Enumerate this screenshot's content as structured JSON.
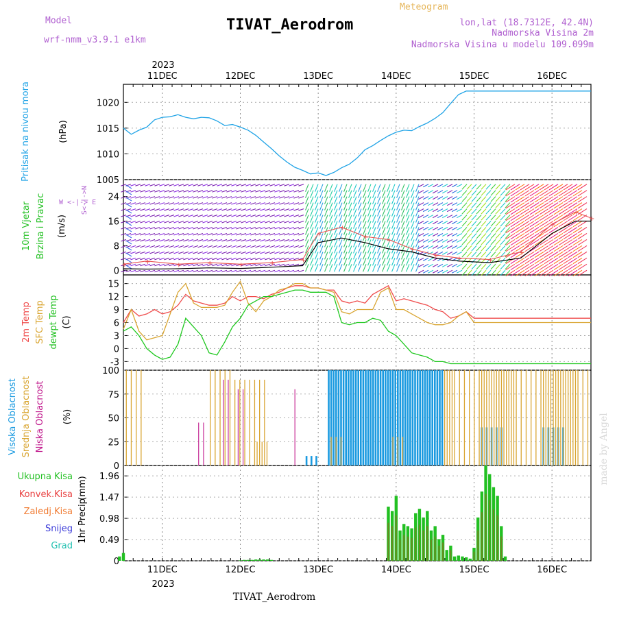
{
  "header": {
    "meteogram": "Meteogram",
    "model_label": "Model",
    "model_name": "wrf-nmm_v3.9.1 e1km",
    "title": "TIVAT_Aerodrom",
    "lonlat": "lon,lat (18.7312E, 42.4N)",
    "elev": "Nadmorska Visina 2m",
    "model_elev": "Nadmorska Visina u modelu 109.099m",
    "year_top": "2023",
    "year_bottom": "2023",
    "footer": "TIVAT_Aerodrom",
    "credit": "made by Angel"
  },
  "colors": {
    "pressure": "#1fa3e6",
    "temp2m": "#ef4a4a",
    "sfc": "#d9a531",
    "dew": "#1ec81e",
    "high_cloud": "#1a9ae0",
    "mid_cloud": "#d9a531",
    "low_cloud": "#c0188c",
    "precip_total": "#22c022",
    "precip_conv": "#e84040",
    "wind_speed": "#000000",
    "wind_gust": "#e85050"
  },
  "x_axis": {
    "days": [
      "11DEC",
      "12DEC",
      "13DEC",
      "14DEC",
      "15DEC",
      "16DEC"
    ],
    "range_days": [
      -0.5,
      5.5
    ]
  },
  "chart_data": [
    {
      "type": "line",
      "panel": "pressure",
      "ylabel_main": "Pritisak na nivou mora",
      "ylabel_unit": "(hPa)",
      "yticks": [
        "1005",
        "1010",
        "1015",
        "1020"
      ],
      "ylim": [
        1005,
        1023.5
      ],
      "x": [
        -0.5,
        -0.4,
        -0.3,
        -0.2,
        -0.1,
        0,
        0.1,
        0.2,
        0.3,
        0.4,
        0.5,
        0.6,
        0.7,
        0.8,
        0.9,
        1,
        1.1,
        1.2,
        1.3,
        1.4,
        1.5,
        1.6,
        1.7,
        1.8,
        1.9,
        2,
        2.1,
        2.2,
        2.3,
        2.4,
        2.5,
        2.6,
        2.7,
        2.8,
        2.9,
        3,
        3.1,
        3.2,
        3.3,
        3.4,
        3.5,
        3.6,
        3.7,
        3.8,
        3.9,
        4,
        4.1,
        4.2,
        4.3,
        4.4,
        4.5,
        4.6,
        4.7,
        4.8,
        4.9,
        5,
        5.1,
        5.2,
        5.3,
        5.4,
        5.5
      ],
      "values": [
        1015,
        1013.8,
        1014.6,
        1015.2,
        1016.6,
        1017.1,
        1017.2,
        1017.6,
        1017.1,
        1016.8,
        1017.1,
        1017.0,
        1016.4,
        1015.5,
        1015.7,
        1015.2,
        1014.6,
        1013.6,
        1012.3,
        1011.0,
        1009.6,
        1008.4,
        1007.4,
        1006.8,
        1006.1,
        1006.3,
        1005.8,
        1006.4,
        1007.3,
        1008.0,
        1009.2,
        1010.8,
        1011.6,
        1012.6,
        1013.5,
        1014.2,
        1014.6,
        1014.5,
        1015.3,
        1016.0,
        1016.9,
        1018.0,
        1019.8,
        1021.5,
        1022.2,
        1022.2,
        1022.2,
        1022.2,
        1022.2,
        1022.2,
        1022.2,
        1022.2,
        1022.2,
        1022.2,
        1022.2,
        1022.2,
        1022.2,
        1022.2,
        1022.2,
        1022.2,
        1022.2
      ]
    },
    {
      "type": "line",
      "panel": "wind",
      "ylabel_main": "10m Vjetar",
      "ylabel_sub": "Brzina i Pravac",
      "ylabel_unit": "(m/s)",
      "compass": "W <-|-> E",
      "compass_ns": "S<-|->N",
      "yticks": [
        "0",
        "8",
        "16",
        "24"
      ],
      "ylim": [
        -1.5,
        29.5
      ],
      "series": [
        {
          "values_x": [
            -0.5,
            -0.2,
            0.2,
            0.6,
            1.0,
            1.4,
            1.8,
            2.0,
            2.3,
            2.6,
            2.9,
            3.2,
            3.5,
            3.8,
            4.2,
            4.6,
            5.0,
            5.3,
            5.5
          ],
          "values": [
            0.5,
            0.4,
            0.5,
            0.8,
            0.6,
            1.0,
            1.5,
            9,
            10.5,
            9,
            7,
            6,
            4,
            3,
            2.5,
            4,
            12,
            16,
            16
          ]
        },
        {
          "values_x": [
            -0.5,
            -0.2,
            0.2,
            0.6,
            1.0,
            1.4,
            1.8,
            2.0,
            2.3,
            2.6,
            2.9,
            3.2,
            3.5,
            3.8,
            4.2,
            4.6,
            5.0,
            5.3,
            5.5
          ],
          "values": [
            2,
            3,
            2,
            2.5,
            2,
            2.5,
            3.5,
            12,
            14,
            11,
            10,
            7,
            5,
            4,
            3.5,
            6,
            15,
            19,
            17
          ]
        }
      ]
    },
    {
      "type": "line",
      "panel": "temperature",
      "ylabel_main": "2m Temp",
      "ylabel_sfc": "SFC Temp",
      "ylabel_dew": "dewpt Temp",
      "ylabel_unit": "(C)",
      "yticks": [
        "-3",
        "0",
        "3",
        "6",
        "9",
        "12",
        "15"
      ],
      "ylim": [
        -5,
        17
      ],
      "x": [
        -0.5,
        -0.4,
        -0.3,
        -0.2,
        -0.1,
        0,
        0.1,
        0.2,
        0.3,
        0.4,
        0.5,
        0.6,
        0.7,
        0.8,
        0.9,
        1,
        1.1,
        1.2,
        1.3,
        1.4,
        1.5,
        1.6,
        1.7,
        1.8,
        1.9,
        2,
        2.1,
        2.2,
        2.3,
        2.4,
        2.5,
        2.6,
        2.7,
        2.8,
        2.9,
        3,
        3.1,
        3.2,
        3.3,
        3.4,
        3.5,
        3.6,
        3.7,
        3.8,
        3.9,
        4,
        4.1,
        4.2,
        4.3,
        4.4,
        4.5,
        4.6,
        4.7,
        4.8,
        4.9,
        5,
        5.1,
        5.2,
        5.3,
        5.4,
        5.5
      ],
      "series": [
        {
          "name": "2m Temp",
          "values": [
            6,
            9,
            7.5,
            8,
            9,
            8,
            8.5,
            10,
            12.5,
            11,
            10.5,
            10,
            10,
            10.5,
            12,
            11,
            12,
            12,
            11.5,
            12.5,
            13,
            14,
            14.5,
            14.5,
            14,
            14,
            13.5,
            13.5,
            11,
            10.5,
            11,
            10.5,
            12.5,
            13.5,
            14.5,
            11,
            11.5,
            11,
            10.5,
            10,
            9,
            8.5,
            7,
            7.5,
            8.5,
            7,
            7,
            7,
            7,
            7,
            7,
            7,
            7,
            7,
            7,
            7,
            7,
            7,
            7,
            7,
            7
          ]
        },
        {
          "name": "SFC Temp",
          "values": [
            4.5,
            9,
            4,
            2,
            2.5,
            3,
            8,
            13,
            15,
            10.5,
            9.5,
            9.5,
            9.5,
            10,
            13,
            15.5,
            10.5,
            8.5,
            11,
            12,
            13.5,
            14,
            15,
            15,
            14,
            14,
            13.5,
            13,
            8.5,
            8,
            9,
            9,
            9,
            13,
            14,
            9,
            9,
            8,
            7,
            6,
            5.5,
            5.5,
            6,
            7.5,
            8.5,
            6,
            6,
            6,
            6,
            6,
            6,
            6,
            6,
            6,
            6,
            6,
            6,
            6,
            6,
            6,
            6
          ]
        },
        {
          "name": "dewpt Temp",
          "values": [
            4,
            5,
            3,
            0,
            -1.5,
            -2.5,
            -2,
            1,
            7,
            5,
            3,
            -1,
            -1.5,
            1.5,
            5,
            7,
            10,
            11,
            12,
            12,
            12.5,
            13,
            13.5,
            13.5,
            13,
            13,
            13,
            12,
            6,
            5.5,
            6,
            6,
            7,
            6.5,
            4,
            3,
            1,
            -1,
            -1.5,
            -2,
            -3,
            -3,
            -3.5,
            -3.5,
            -3.5,
            -3.5,
            -3.5,
            -3.5,
            -3.5,
            -3.5,
            -3.5,
            -3.5,
            -3.5,
            -3.5,
            -3.5,
            -3.5,
            -3.5,
            -3.5,
            -3.5,
            -3.5,
            -3.5
          ]
        }
      ]
    },
    {
      "type": "bar",
      "panel": "cloud",
      "ylabel_high": "Visoka Oblacnost",
      "ylabel_mid": "Srednja Oblacnost",
      "ylabel_low": "Niska Oblacnost",
      "ylabel_unit": "(%)",
      "yticks": [
        "0",
        "25",
        "50",
        "75",
        "100"
      ],
      "ylim": [
        0,
        100
      ]
    },
    {
      "type": "bar",
      "panel": "precip",
      "labels": [
        "Ukupna Kisa",
        "Konvek.Kisa",
        "Zaledj.Kisa",
        "Snijeg",
        "Grad"
      ],
      "label_colors": [
        "#22c022",
        "#e84040",
        "#f07a30",
        "#3a3ad8",
        "#22c0b0"
      ],
      "ylabel_main": "1hr Precip",
      "ylabel_unit": "(mm)",
      "yticks": [
        "0",
        "0.49",
        "0.98",
        "1.47",
        "1.96"
      ],
      "ylim": [
        0,
        2.2
      ],
      "x": [
        -0.55,
        -0.5,
        1.0,
        1.05,
        1.1,
        1.15,
        1.2,
        1.25,
        1.3,
        1.35,
        1.4,
        2.9,
        2.95,
        3.0,
        3.05,
        3.1,
        3.15,
        3.2,
        3.25,
        3.3,
        3.35,
        3.4,
        3.45,
        3.5,
        3.55,
        3.6,
        3.65,
        3.7,
        3.75,
        3.8,
        3.85,
        3.9,
        3.95,
        4.0,
        4.05,
        4.1,
        4.15,
        4.2,
        4.25,
        4.3,
        4.35,
        4.4
      ],
      "values": [
        0.1,
        0.18,
        0.01,
        0.02,
        0.02,
        0.02,
        0.03,
        0.03,
        0.03,
        0.03,
        0.02,
        1.25,
        1.15,
        1.5,
        0.7,
        0.85,
        0.8,
        0.75,
        1.1,
        1.2,
        1.0,
        1.15,
        0.7,
        0.8,
        0.5,
        0.6,
        0.25,
        0.35,
        0.1,
        0.12,
        0.1,
        0.08,
        0.05,
        0.3,
        1.0,
        1.6,
        2.2,
        2.0,
        1.7,
        1.5,
        0.8,
        0.1
      ]
    }
  ]
}
